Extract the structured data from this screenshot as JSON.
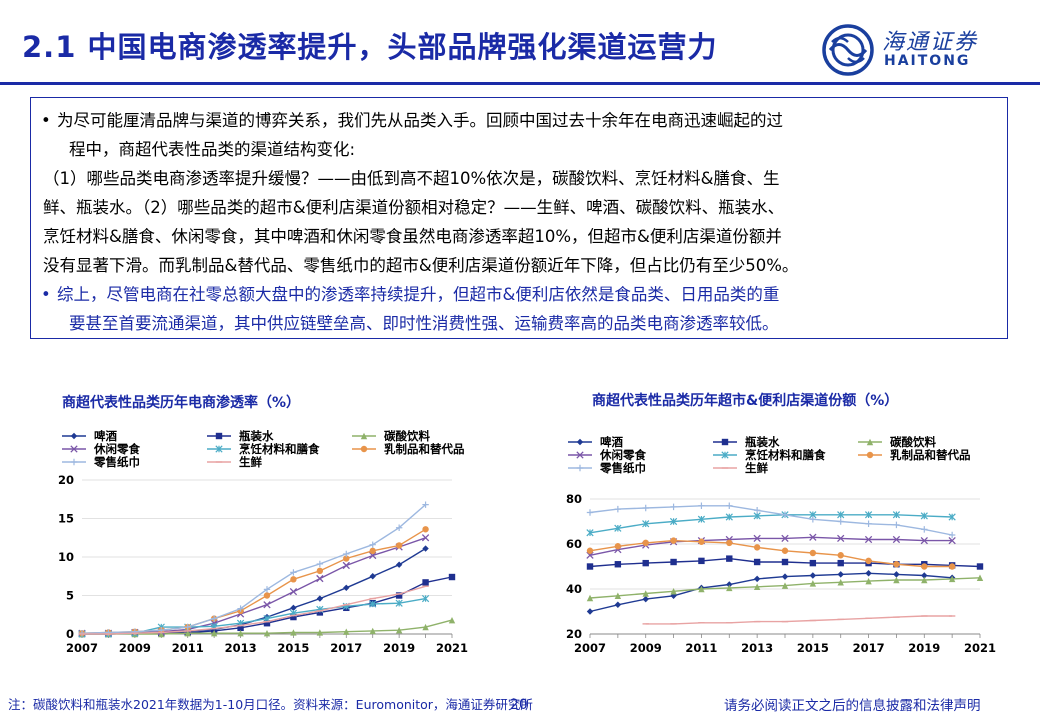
{
  "header": {
    "title": "2.1 中国电商渗透率提升，头部品牌强化渠道运营力",
    "logo_cn": "海通证券",
    "logo_en": "HAITONG"
  },
  "textbox": {
    "p1_line1": "为尽可能厘清品牌与渠道的博弈关系，我们先从品类入手。回顾中国过去十余年在电商迅速崛起的过",
    "p1_line2": "程中，商超代表性品类的渠道结构变化:",
    "p2_line1": "（1）哪些品类电商渗透率提升缓慢？——由低到高不超10%依次是，碳酸饮料、烹饪材料&膳食、生",
    "p2_line2": "鲜、瓶装水。（2）哪些品类的超市&便利店渠道份额相对稳定？——生鲜、啤酒、碳酸饮料、瓶装水、",
    "p2_line3": "烹饪材料&膳食、休闲零食，其中啤酒和休闲零食虽然电商渗透率超10%，但超市&便利店渠道份额并",
    "p2_line4": "没有显著下滑。而乳制品&替代品、零售纸巾的超市&便利店渠道份额近年下降，但占比仍有至少50%。",
    "p3_line1": "综上，尽管电商在社零总额大盘中的渗透率持续提升，但超市&便利店依然是食品类、日用品类的重",
    "p3_line2": "要甚至首要流通渠道，其中供应链壁垒高、即时性消费性强、运输费率高的品类电商渗透率较低。",
    "bullet": "•"
  },
  "chart_data": [
    {
      "type": "line",
      "title": "商超代表性品类历年电商渗透率（%）",
      "x": [
        2007,
        2008,
        2009,
        2010,
        2011,
        2012,
        2013,
        2014,
        2015,
        2016,
        2017,
        2018,
        2019,
        2020,
        2021
      ],
      "x_ticks": [
        "2007",
        "2009",
        "2011",
        "2013",
        "2015",
        "2017",
        "2019",
        "2021"
      ],
      "y_ticks": [
        "0",
        "5",
        "10",
        "15",
        "20"
      ],
      "ylim": [
        0,
        20
      ],
      "legend_position": "top",
      "series": [
        {
          "name": "啤酒",
          "color": "#1f3a93",
          "marker": "diamond",
          "values": [
            0.1,
            0.1,
            0.1,
            0.2,
            0.4,
            0.6,
            1.2,
            2.2,
            3.4,
            4.6,
            6.0,
            7.5,
            9.0,
            11.1,
            null
          ]
        },
        {
          "name": "瓶装水",
          "color": "#1f2f8f",
          "marker": "square",
          "values": [
            0.0,
            0.0,
            0.1,
            0.1,
            0.2,
            0.4,
            0.8,
            1.4,
            2.2,
            2.8,
            3.4,
            4.0,
            5.0,
            6.7,
            7.4
          ]
        },
        {
          "name": "碳酸饮料",
          "color": "#8fb26a",
          "marker": "triangle",
          "values": [
            0.0,
            0.0,
            0.0,
            0.0,
            0.1,
            0.1,
            0.1,
            0.1,
            0.2,
            0.2,
            0.3,
            0.4,
            0.5,
            0.9,
            1.8
          ]
        },
        {
          "name": "休闲零食",
          "color": "#7a56a8",
          "marker": "x",
          "values": [
            0.1,
            0.1,
            0.2,
            0.3,
            0.6,
            1.4,
            2.6,
            3.8,
            5.5,
            7.2,
            8.9,
            10.2,
            11.3,
            12.5,
            null
          ]
        },
        {
          "name": "烹饪材料和膳食",
          "color": "#4bacc6",
          "marker": "star",
          "values": [
            0.0,
            0.0,
            0.1,
            0.9,
            0.9,
            1.0,
            1.4,
            2.0,
            2.7,
            3.2,
            3.6,
            3.9,
            4.0,
            4.6,
            null
          ]
        },
        {
          "name": "乳制品和替代品",
          "color": "#e8944a",
          "marker": "circle",
          "values": [
            0.1,
            0.2,
            0.3,
            0.5,
            0.9,
            2.0,
            3.0,
            5.0,
            7.1,
            8.2,
            9.8,
            10.8,
            11.5,
            13.6,
            null
          ]
        },
        {
          "name": "零售纸巾",
          "color": "#9db8e0",
          "marker": "plus",
          "values": [
            0.1,
            0.2,
            0.3,
            0.5,
            0.9,
            2.0,
            3.3,
            5.8,
            8.0,
            9.1,
            10.4,
            11.6,
            13.8,
            16.8,
            null
          ]
        },
        {
          "name": "生鲜",
          "color": "#e8a3a3",
          "marker": "dash",
          "values": [
            0.0,
            0.0,
            0.1,
            0.2,
            0.4,
            0.7,
            1.1,
            1.6,
            2.4,
            3.0,
            3.8,
            4.6,
            5.2,
            6.2,
            null
          ]
        }
      ]
    },
    {
      "type": "line",
      "title": "商超代表性品类历年超市&便利店渠道份额（%）",
      "x": [
        2007,
        2008,
        2009,
        2010,
        2011,
        2012,
        2013,
        2014,
        2015,
        2016,
        2017,
        2018,
        2019,
        2020,
        2021
      ],
      "x_ticks": [
        "2007",
        "2009",
        "2011",
        "2013",
        "2015",
        "2017",
        "2019",
        "2021"
      ],
      "y_ticks": [
        "20",
        "40",
        "60",
        "80"
      ],
      "ylim": [
        20,
        80
      ],
      "legend_position": "top",
      "series": [
        {
          "name": "啤酒",
          "color": "#1f3a93",
          "marker": "diamond",
          "values": [
            30,
            33,
            35.5,
            37,
            40.5,
            42,
            44.5,
            45.5,
            46,
            46.5,
            47,
            46.5,
            46,
            45,
            null
          ]
        },
        {
          "name": "瓶装水",
          "color": "#1f2f8f",
          "marker": "square",
          "values": [
            50,
            51,
            51.5,
            52,
            52.5,
            53.5,
            52,
            52,
            51.5,
            51.5,
            51.5,
            51,
            51,
            50.5,
            50
          ]
        },
        {
          "name": "碳酸饮料",
          "color": "#8fb26a",
          "marker": "triangle",
          "values": [
            36,
            37,
            38,
            39,
            40,
            40.5,
            41,
            41.5,
            42.5,
            43,
            43.5,
            44,
            44,
            44.5,
            45
          ]
        },
        {
          "name": "休闲零食",
          "color": "#7a56a8",
          "marker": "x",
          "values": [
            55,
            57.5,
            59.5,
            61,
            61.5,
            62,
            62.5,
            62.5,
            63,
            62.5,
            62,
            62,
            61.5,
            61.5,
            null
          ]
        },
        {
          "name": "烹饪材料和膳食",
          "color": "#4bacc6",
          "marker": "star",
          "values": [
            65,
            67,
            69,
            70,
            71,
            72,
            72.5,
            73,
            73,
            73,
            73,
            73,
            72.5,
            72,
            null
          ]
        },
        {
          "name": "乳制品和替代品",
          "color": "#e8944a",
          "marker": "circle",
          "values": [
            57,
            59,
            60.5,
            61.5,
            61,
            60.5,
            58.5,
            57,
            56,
            55,
            52.5,
            51,
            50,
            50,
            null
          ]
        },
        {
          "name": "零售纸巾",
          "color": "#9db8e0",
          "marker": "plus",
          "values": [
            74,
            75.5,
            76,
            76.5,
            77,
            77,
            75,
            73,
            71,
            70,
            69,
            68.5,
            66.5,
            64,
            null
          ]
        },
        {
          "name": "生鲜",
          "color": "#e8a3a3",
          "marker": "dash",
          "values": [
            null,
            null,
            24.5,
            24.5,
            25,
            25,
            25.5,
            25.5,
            26,
            26.5,
            27,
            27.5,
            28,
            28,
            null
          ]
        }
      ]
    }
  ],
  "footer": {
    "note": "注：碳酸饮料和瓶装水2021年数据为1-10月口径。资料来源：Euromonitor，海通证券研究所",
    "page": "20",
    "disclaimer": "请务必阅读正文之后的信息披露和法律声明"
  }
}
